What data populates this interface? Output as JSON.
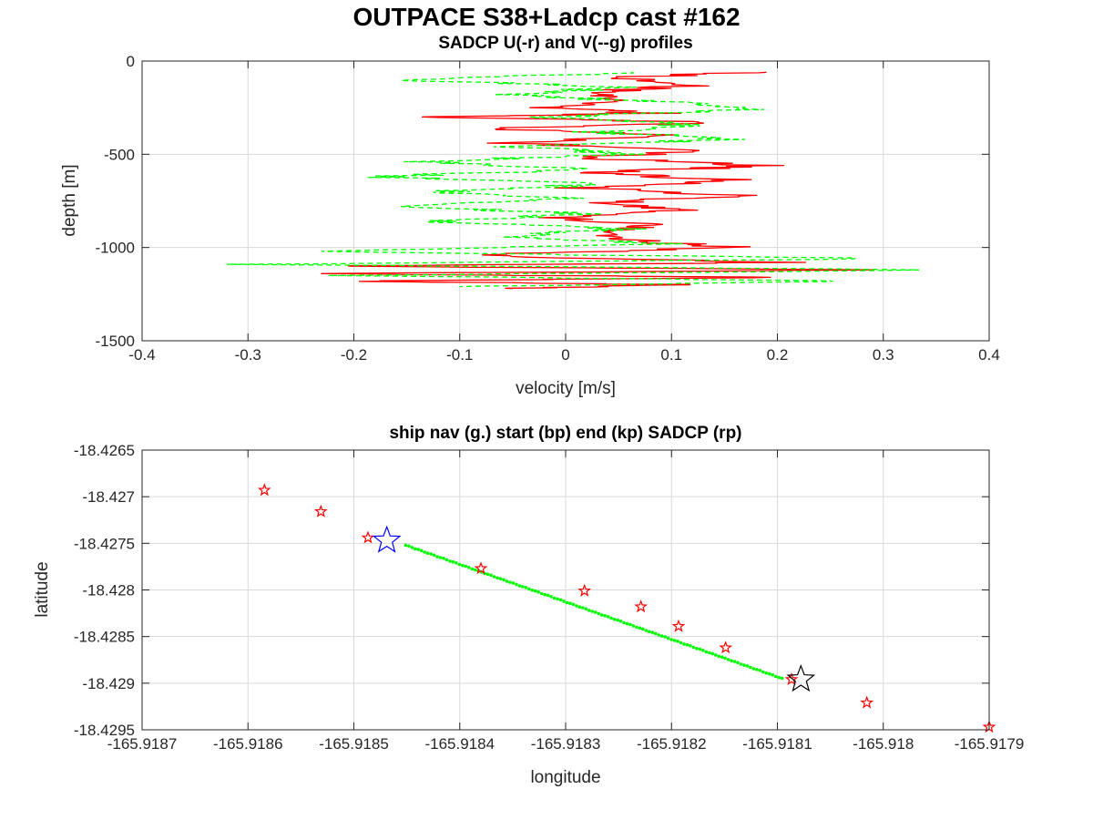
{
  "figure": {
    "suptitle": "OUTPACE S38+Ladcp cast #162"
  },
  "colors": {
    "u_profile": "#ff0000",
    "v_profile": "#00ff00",
    "ship_nav": "#00ff00",
    "start_marker": "#0000ff",
    "end_marker": "#000000",
    "sadcp_marker": "#ff0000",
    "grid": "#d9d9d9",
    "axis": "#262626"
  },
  "chart_data": [
    {
      "type": "line",
      "title": "SADCP U(-r) and V(--g) profiles",
      "xlabel": "velocity [m/s]",
      "ylabel": "depth [m]",
      "xlim": [
        -0.4,
        0.4
      ],
      "ylim": [
        -1500,
        0
      ],
      "xticks": [
        "-0.4",
        "-0.3",
        "-0.2",
        "-0.1",
        "0",
        "0.1",
        "0.2",
        "0.3",
        "0.4"
      ],
      "yticks": [
        "-1500",
        "-1000",
        "-500",
        "0"
      ],
      "grid": true,
      "series": [
        {
          "key": "U",
          "style": "solid",
          "color": "red",
          "depth": [
            -60,
            -90,
            -130,
            -170,
            -210,
            -250,
            -280,
            -300,
            -330,
            -360,
            -400,
            -440,
            -480,
            -520,
            -560,
            -600,
            -640,
            -680,
            -720,
            -760,
            -800,
            -840,
            -880,
            -920,
            -960,
            -1000,
            -1040,
            -1080,
            -1100,
            -1120,
            -1140,
            -1160,
            -1180,
            -1200,
            -1220
          ],
          "values": [
            0.17,
            0.05,
            0.12,
            0.02,
            0.06,
            -0.01,
            0.08,
            -0.12,
            0.15,
            -0.08,
            0.1,
            -0.05,
            0.12,
            0.02,
            0.19,
            0.03,
            0.16,
            0.01,
            0.17,
            0.03,
            0.1,
            -0.01,
            0.08,
            0.03,
            0.06,
            0.16,
            -0.1,
            0.2,
            -0.22,
            0.3,
            -0.25,
            0.2,
            -0.2,
            0.12,
            -0.05
          ]
        },
        {
          "key": "V",
          "style": "dashed",
          "color": "green",
          "depth": [
            -60,
            -100,
            -140,
            -180,
            -220,
            -260,
            -300,
            -340,
            -380,
            -420,
            -460,
            -500,
            -540,
            -580,
            -620,
            -660,
            -700,
            -740,
            -780,
            -820,
            -860,
            -900,
            -940,
            -980,
            -1020,
            -1060,
            -1090,
            -1120,
            -1150,
            -1180,
            -1210
          ],
          "values": [
            0.08,
            -0.15,
            0.05,
            -0.05,
            0.1,
            0.18,
            -0.02,
            0.12,
            0.03,
            0.15,
            -0.05,
            0.06,
            -0.14,
            0.02,
            -0.18,
            0.04,
            -0.12,
            0.01,
            -0.17,
            0.03,
            -0.13,
            0.05,
            -0.06,
            0.09,
            -0.25,
            0.3,
            -0.31,
            0.36,
            -0.22,
            0.27,
            -0.1
          ]
        }
      ]
    },
    {
      "type": "scatter",
      "title": "ship nav (g.) start (bp) end (kp) SADCP (rp)",
      "xlabel": "longitude",
      "ylabel": "latitude",
      "xlim": [
        -165.9188,
        -165.9179
      ],
      "ylim": [
        -18.4295,
        -18.4265
      ],
      "xticks": [
        "-165.9187",
        "-165.9186",
        "-165.9185",
        "-165.9184",
        "-165.9183",
        "-165.9182",
        "-165.9181",
        "-165.918",
        "-165.9179"
      ],
      "yticks": [
        "-18.4295",
        "-18.429",
        "-18.4285",
        "-18.428",
        "-18.4275",
        "-18.427",
        "-18.4265"
      ],
      "grid": true,
      "ship_nav": {
        "lon_start": -165.91852,
        "lat_start": -18.42752,
        "lon_end": -165.91812,
        "lat_end": -18.42895,
        "points": 120
      },
      "start": {
        "lon": -165.91854,
        "lat": -18.42747
      },
      "end": {
        "lon": -165.9181,
        "lat": -18.42896
      },
      "sadcp": {
        "lon": [
          -165.91867,
          -165.91861,
          -165.91856,
          -165.91844,
          -165.91833,
          -165.91827,
          -165.91823,
          -165.91818,
          -165.91811,
          -165.91803,
          -165.9179
        ],
        "lat": [
          -18.42693,
          -18.42716,
          -18.42744,
          -18.42777,
          -18.42801,
          -18.42818,
          -18.42839,
          -18.42862,
          -18.42896,
          -18.42921,
          -18.42947
        ]
      }
    }
  ]
}
